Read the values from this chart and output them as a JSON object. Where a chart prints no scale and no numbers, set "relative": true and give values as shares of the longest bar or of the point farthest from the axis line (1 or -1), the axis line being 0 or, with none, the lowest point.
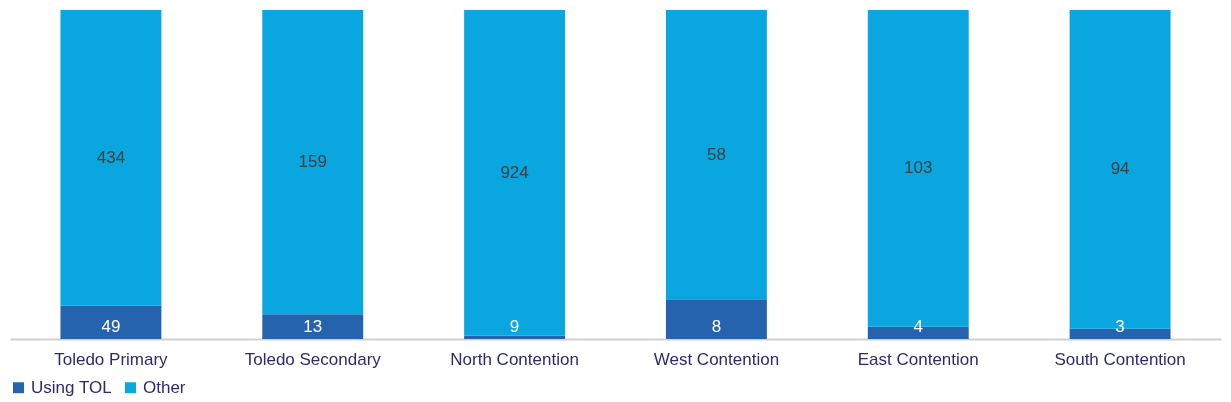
{
  "chart_data": {
    "type": "bar",
    "stacked": true,
    "relative": true,
    "categories": [
      "Toledo Primary",
      "Toledo Secondary",
      "North Contention",
      "West Contention",
      "East Contention",
      "South Contention"
    ],
    "series": [
      {
        "name": "Using TOL",
        "color": "#2563ae",
        "values": [
          0.1014,
          0.0756,
          0.0096,
          0.1212,
          0.0374,
          0.0309
        ]
      },
      {
        "name": "Other",
        "color": "#09a6e0",
        "values": [
          0.8986,
          0.9244,
          0.9904,
          0.8788,
          0.9626,
          0.9691
        ]
      }
    ],
    "annotations": [
      "49",
      "13",
      "9",
      "8",
      "4",
      "3",
      "434",
      "159",
      "924",
      "58",
      "103",
      "94"
    ],
    "legend": "bottom"
  }
}
